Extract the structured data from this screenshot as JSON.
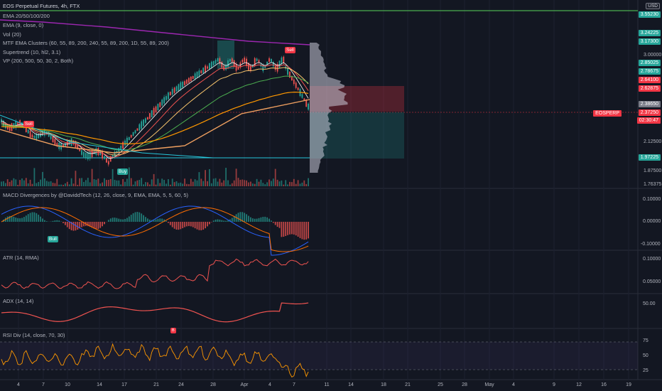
{
  "header": {
    "symbol": "EOS Perpetual Futures, 4h, FTX",
    "currency": "USD"
  },
  "legend": [
    "EMA 20/50/100/200",
    "EMA (9, close, 0)",
    "Vol (20)",
    "MTF EMA Clusters (60, 55, 89, 200, 240, 55, 89, 200, 1D, 55, 89, 200)",
    "Supertrend (10, hl2, 3.1)",
    "VP (200, 500, 50, 30, 2, Both)"
  ],
  "panes": {
    "macd": {
      "title": "MACD Divergences by @DaviddTech (12, 26, close, 9, EMA, EMA, 5, 5, 60, 5)",
      "ticks": [
        "0.10000",
        "0.00000",
        "-0.10000"
      ]
    },
    "atr": {
      "title": "ATR (14, RMA)",
      "ticks": [
        "0.10000",
        "0.05000"
      ]
    },
    "adx": {
      "title": "ADX (14, 14)",
      "ticks": [
        "50.00"
      ]
    },
    "rsi": {
      "title": "RSI Div (14, close, 70, 30)",
      "ticks": [
        "75",
        "50",
        "25"
      ]
    }
  },
  "price_axis": {
    "ticks": [
      "3.00000",
      "2.12500",
      "1.87500",
      "1.76375"
    ],
    "tags": [
      {
        "value": "3.55230",
        "color": "#26a69a"
      },
      {
        "value": "3.24225",
        "color": "#26a69a"
      },
      {
        "value": "3.17300",
        "color": "#26a69a"
      },
      {
        "value": "2.85025",
        "color": "#26a69a"
      },
      {
        "value": "2.78675",
        "color": "#26a69a"
      },
      {
        "value": "2.64100",
        "color": "#f23645"
      },
      {
        "value": "2.62875",
        "color": "#f23645"
      },
      {
        "value": "2.38650",
        "color": "#787b86"
      },
      {
        "value": "2.37250",
        "color": "#f23645"
      },
      {
        "value": "1.97225",
        "color": "#26a69a"
      }
    ],
    "symbol_tag": "EOSPERP",
    "countdown": "02:30:47"
  },
  "markers": {
    "sell": "Sell",
    "buy": "Buy",
    "bull": "Bull",
    "bear": "B"
  },
  "x_axis": [
    "4",
    "7",
    "10",
    "14",
    "17",
    "21",
    "24",
    "28",
    "Apr",
    "4",
    "7",
    "11",
    "14",
    "18",
    "21",
    "25",
    "28",
    "May",
    "4",
    "9",
    "12",
    "16",
    "19"
  ],
  "colors": {
    "bg": "#131722",
    "up": "#26a69a",
    "down": "#ef5350",
    "green_line": "#4caf50",
    "magenta": "#9c27b0"
  }
}
